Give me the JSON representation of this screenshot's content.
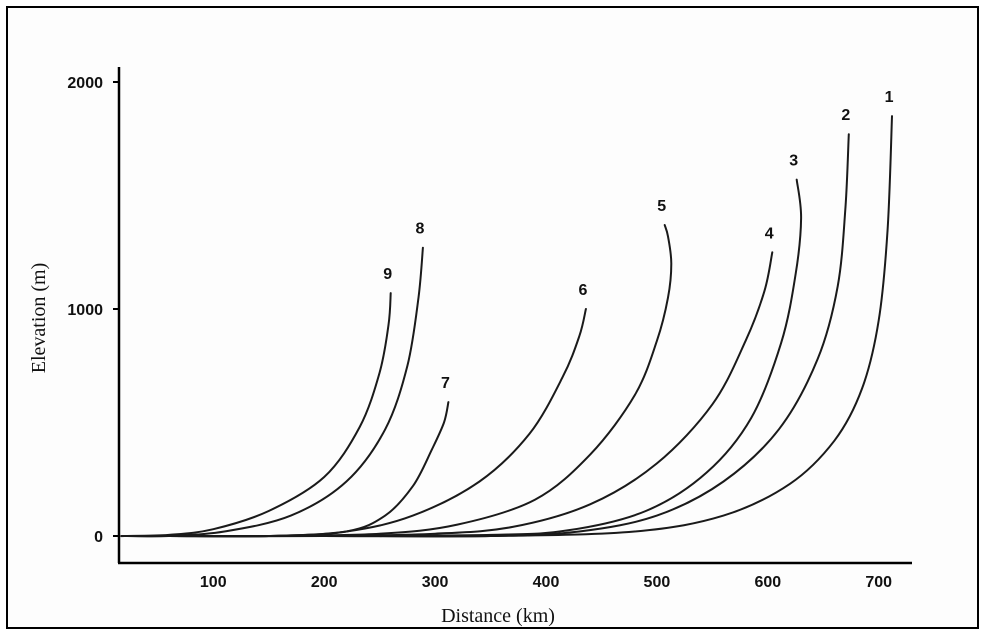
{
  "chart_data": {
    "type": "line",
    "xlabel": "Distance (km)",
    "ylabel": "Elevation (m)",
    "xlim": [
      15,
      730
    ],
    "ylim": [
      0,
      2000
    ],
    "x_ticks": [
      100,
      200,
      300,
      400,
      500,
      600,
      700
    ],
    "y_ticks": [
      0,
      1000,
      2000
    ],
    "grid": false,
    "series": [
      {
        "name": "1",
        "x": [
          60,
          200,
          350,
          480,
          560,
          620,
          660,
          685,
          700,
          708,
          712
        ],
        "y": [
          0,
          0,
          0,
          20,
          90,
          230,
          420,
          650,
          950,
          1350,
          1850
        ]
      },
      {
        "name": "2",
        "x": [
          60,
          200,
          350,
          430,
          500,
          560,
          610,
          645,
          663,
          670,
          673
        ],
        "y": [
          0,
          0,
          0,
          20,
          90,
          240,
          470,
          780,
          1100,
          1450,
          1770
        ]
      },
      {
        "name": "3",
        "x": [
          60,
          200,
          350,
          420,
          490,
          545,
          585,
          612,
          625,
          630,
          626
        ],
        "y": [
          0,
          0,
          5,
          25,
          110,
          280,
          520,
          850,
          1150,
          1400,
          1570
        ]
      },
      {
        "name": "4",
        "x": [
          60,
          200,
          300,
          370,
          440,
          500,
          550,
          580,
          597,
          604
        ],
        "y": [
          0,
          0,
          10,
          40,
          140,
          320,
          580,
          860,
          1080,
          1250
        ]
      },
      {
        "name": "5",
        "x": [
          60,
          150,
          250,
          320,
          390,
          440,
          480,
          500,
          510,
          513,
          510,
          507
        ],
        "y": [
          0,
          0,
          10,
          50,
          160,
          360,
          620,
          860,
          1050,
          1200,
          1320,
          1370
        ]
      },
      {
        "name": "6",
        "x": [
          60,
          150,
          220,
          280,
          340,
          385,
          415,
          430,
          436
        ],
        "y": [
          0,
          0,
          20,
          90,
          240,
          450,
          700,
          880,
          1000
        ]
      },
      {
        "name": "7",
        "x": [
          60,
          150,
          220,
          255,
          280,
          297,
          308,
          312
        ],
        "y": [
          0,
          0,
          20,
          90,
          220,
          380,
          500,
          590
        ]
      },
      {
        "name": "8",
        "x": [
          20,
          60,
          110,
          170,
          220,
          255,
          275,
          285,
          289
        ],
        "y": [
          0,
          0,
          20,
          90,
          240,
          470,
          750,
          1050,
          1270
        ]
      },
      {
        "name": "9",
        "x": [
          20,
          60,
          100,
          150,
          200,
          232,
          250,
          258,
          260
        ],
        "y": [
          0,
          5,
          30,
          110,
          260,
          480,
          720,
          930,
          1070
        ]
      }
    ]
  }
}
